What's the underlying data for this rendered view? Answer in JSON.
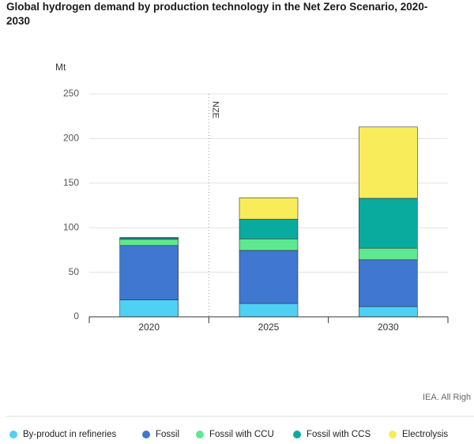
{
  "chart_data": {
    "type": "stacked-bar",
    "title": "Global hydrogen demand by production technology in the Net Zero Scenario, 2020-2030",
    "y_label": "Mt",
    "categories": [
      "2020",
      "2025",
      "2030"
    ],
    "series": [
      {
        "name": "By-product in refineries",
        "color": "#4fd0f5",
        "values": [
          19,
          15,
          11.5
        ]
      },
      {
        "name": "Fossil",
        "color": "#3f77d1",
        "values": [
          61,
          59.5,
          52.5
        ]
      },
      {
        "name": "Fossil with CCU",
        "color": "#5ee88f",
        "values": [
          7,
          13,
          13
        ]
      },
      {
        "name": "Fossil with CCS",
        "color": "#0aab9f",
        "values": [
          1.5,
          22,
          56
        ]
      },
      {
        "name": "Electrolysis",
        "color": "#f9ec5a",
        "values": [
          0.5,
          24,
          80
        ]
      }
    ],
    "annotation": "NZE",
    "source": "IEA. All Righ",
    "ylim": [
      0,
      250
    ],
    "yticks": [
      0,
      50,
      100,
      150,
      200,
      250
    ],
    "grid": true
  }
}
